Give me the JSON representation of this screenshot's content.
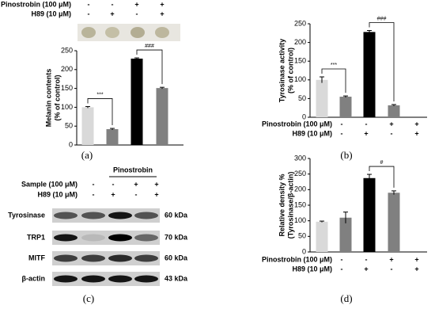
{
  "chart_data": [
    {
      "type": "bar",
      "ylabel": [
        "Melanin contents",
        "(% of control)"
      ],
      "values": [
        100,
        42,
        229,
        151
      ],
      "errors": [
        2,
        2,
        2,
        2
      ],
      "colors": [
        "#d9d9d9",
        "#808080",
        "#000000",
        "#808080"
      ],
      "ylim": [
        0,
        250
      ],
      "yticks": [
        0,
        50,
        100,
        150,
        200,
        250
      ],
      "conditions": [
        {
          "name": "Pinostrobin (100 μM)",
          "signs": [
            "-",
            "-",
            "+",
            "+"
          ]
        },
        {
          "name": "H89 (10 μM)",
          "signs": [
            "-",
            "+",
            "-",
            "+"
          ]
        }
      ],
      "annotations": [
        "***",
        "###"
      ],
      "panel": "(a)"
    },
    {
      "type": "bar",
      "ylabel": [
        "Tyrosinase activity",
        "(% of control)"
      ],
      "values": [
        100,
        55,
        228,
        32
      ],
      "errors": [
        8,
        2,
        4,
        2
      ],
      "colors": [
        "#d9d9d9",
        "#808080",
        "#000000",
        "#808080"
      ],
      "ylim": [
        0,
        250
      ],
      "yticks": [
        0,
        50,
        100,
        150,
        200,
        250
      ],
      "conditions": [
        {
          "name": "Pinostrobin (100 μM)",
          "signs": [
            "-",
            "-",
            "+",
            "+"
          ]
        },
        {
          "name": "H89 (10 μM)",
          "signs": [
            "-",
            "+",
            "-",
            "+"
          ]
        }
      ],
      "annotations": [
        "***",
        "###"
      ],
      "panel": "(b)"
    },
    {
      "type": "bar",
      "ylabel": [
        "Relative density %",
        "(Tyrosinase/β-actin)"
      ],
      "values": [
        97,
        110,
        237,
        190
      ],
      "errors": [
        2,
        18,
        12,
        6
      ],
      "colors": [
        "#d9d9d9",
        "#808080",
        "#000000",
        "#808080"
      ],
      "ylim": [
        0,
        300
      ],
      "yticks": [
        0,
        50,
        100,
        150,
        200,
        250,
        300
      ],
      "conditions": [
        {
          "name": "Pinostrobin (100 μM)",
          "signs": [
            "-",
            "-",
            "+",
            "+"
          ]
        },
        {
          "name": "H89 (10 μM)",
          "signs": [
            "-",
            "+",
            "-",
            "+"
          ]
        }
      ],
      "annotations": [
        "#"
      ],
      "panel": "(d)"
    }
  ],
  "blot": {
    "header": "Pinostrobin",
    "conditions": [
      {
        "name": "Sample (100 μM)",
        "signs": [
          "-",
          "-",
          "+",
          "+"
        ]
      },
      {
        "name": "H89 (10 μM)",
        "signs": [
          "-",
          "+",
          "-",
          "+"
        ]
      }
    ],
    "rows": [
      {
        "name": "Tyrosinase",
        "size": "60 kDa"
      },
      {
        "name": "TRP1",
        "size": "70 kDa"
      },
      {
        "name": "MITF",
        "size": "60 kDa"
      },
      {
        "name": "β-actin",
        "size": "43 kDa"
      }
    ],
    "panel": "(c)"
  }
}
